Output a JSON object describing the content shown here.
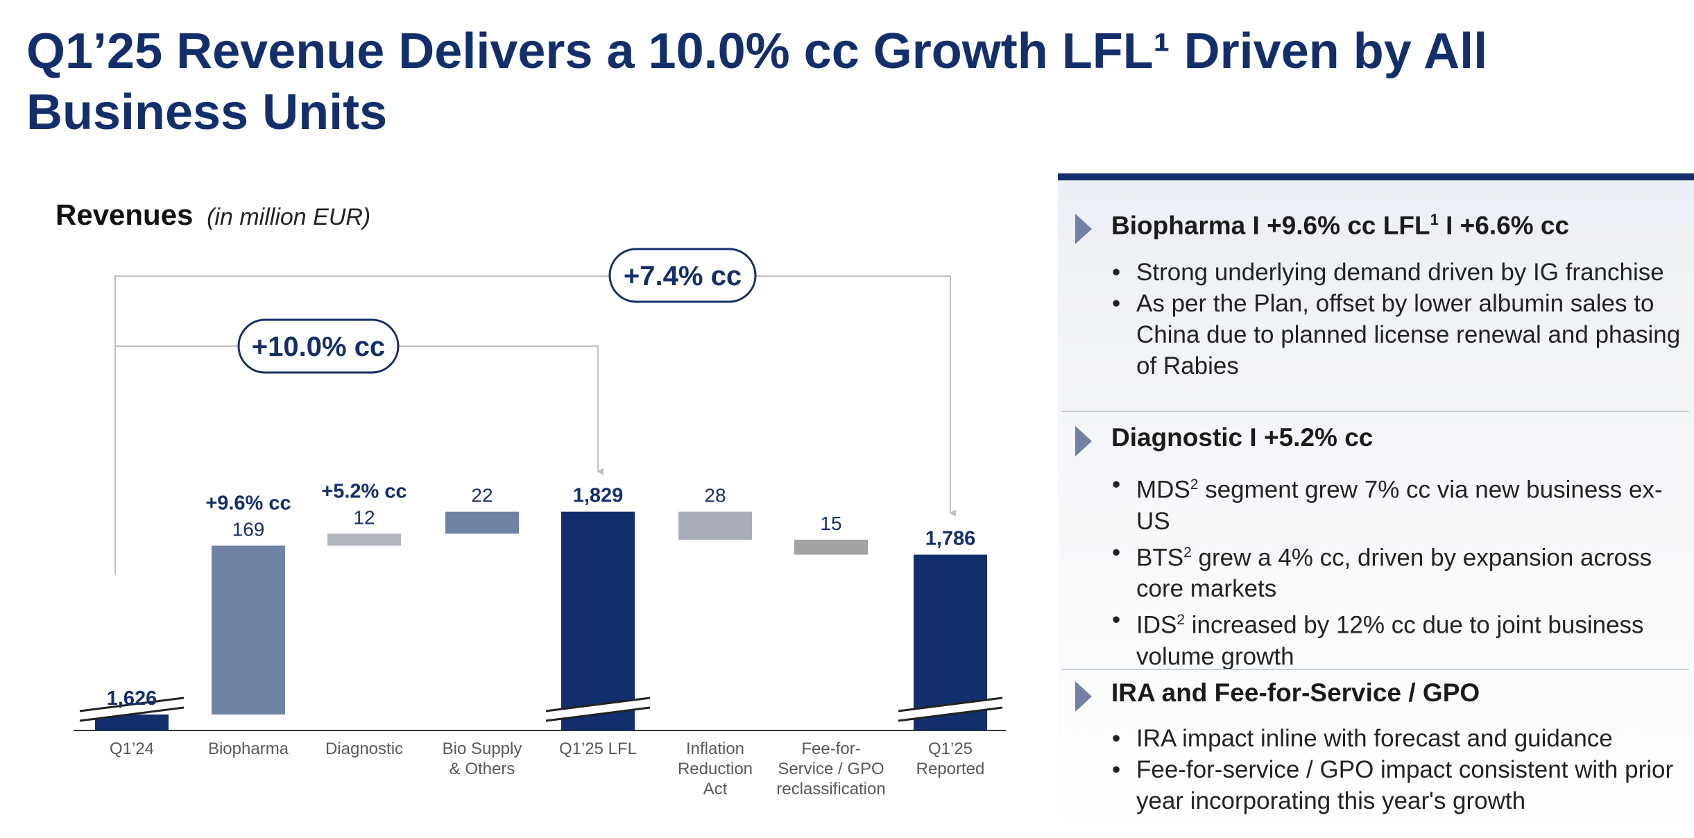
{
  "title": "Q1’25 Revenue Delivers a 10.0% cc Growth LFL¹ Driven by All Business Units",
  "chart_heading": {
    "main": "Revenues",
    "unit": "(in million EUR)"
  },
  "chart_data": {
    "type": "bar",
    "subtype": "waterfall",
    "categories": [
      "Q1’24",
      "Biopharma",
      "Diagnostic",
      "Bio Supply & Others",
      "Q1’25 LFL",
      "Inflation Reduction Act",
      "Fee-for-Service / GPO reclassification",
      "Q1’25 Reported"
    ],
    "bars": [
      {
        "category": "Q1’24",
        "kind": "total",
        "value": 1626,
        "label": "1,626",
        "growth": ""
      },
      {
        "category": "Biopharma",
        "kind": "increase",
        "value": 169,
        "label": "169",
        "growth": "+9.6% cc"
      },
      {
        "category": "Diagnostic",
        "kind": "increase",
        "value": 12,
        "label": "12",
        "growth": "+5.2% cc"
      },
      {
        "category": "Bio Supply & Others",
        "kind": "increase",
        "value": 22,
        "label": "22",
        "growth": ""
      },
      {
        "category": "Q1’25 LFL",
        "kind": "total",
        "value": 1829,
        "label": "1,829",
        "growth": ""
      },
      {
        "category": "Inflation Reduction Act",
        "kind": "decrease",
        "value": -28,
        "label": "28",
        "growth": ""
      },
      {
        "category": "Fee-for-Service / GPO reclassification",
        "kind": "decrease",
        "value": -15,
        "label": "15",
        "growth": ""
      },
      {
        "category": "Q1’25 Reported",
        "kind": "total",
        "value": 1786,
        "label": "1,786",
        "growth": ""
      }
    ],
    "axis_break": true,
    "ylim": [
      1500,
      1860
    ],
    "grid": false,
    "annotations": [
      {
        "text": "+10.0% cc",
        "from": "Q1’24",
        "to": "Q1’25 LFL"
      },
      {
        "text": "+7.4% cc",
        "from": "Q1’24",
        "to": "Q1’25 Reported"
      }
    ],
    "colors": {
      "total": "#132f6b",
      "biopharma": "#7082a5",
      "diagnostic": "#b1b5be",
      "bio_supply": "#7082a5",
      "ira": "#a8adb8",
      "fee_for_service": "#a3a3a3",
      "connector": "#bfbfbf",
      "label": "#132f6b",
      "axis_label": "#595959"
    }
  },
  "panel": {
    "sections": [
      {
        "title": "Biopharma I +9.6% cc LFL",
        "title_sup": "1",
        "title_after": " I +6.6% cc",
        "bullets": [
          {
            "text": "Strong underlying demand driven by IG franchise"
          },
          {
            "text": "As per the Plan, offset by lower albumin sales to China due to planned license renewal and phasing of Rabies"
          }
        ]
      },
      {
        "title": "Diagnostic I +5.2% cc",
        "title_sup": "",
        "title_after": "",
        "bullets": [
          {
            "pre": "MDS",
            "sup": "2",
            "text": " segment grew 7% cc via new business ex-US"
          },
          {
            "pre": "BTS",
            "sup": "2",
            "text": " grew a 4% cc, driven by expansion across core markets"
          },
          {
            "pre": "IDS",
            "sup": "2",
            "text": " increased by 12% cc due to joint business volume growth"
          }
        ]
      },
      {
        "title": "IRA and Fee-for-Service / GPO",
        "title_sup": "",
        "title_after": "",
        "bullets": [
          {
            "text": "IRA impact inline with forecast and guidance"
          },
          {
            "text": "Fee-for-service / GPO impact consistent with prior year incorporating this year's growth"
          }
        ]
      }
    ]
  }
}
